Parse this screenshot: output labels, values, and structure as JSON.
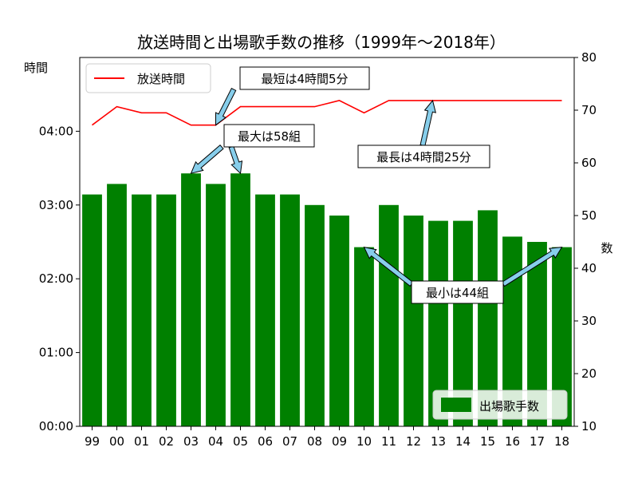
{
  "chart_data": {
    "type": "bar",
    "title": "放送時間と出場歌手数の推移（1999年〜2018年）",
    "categories": [
      "99",
      "00",
      "01",
      "02",
      "03",
      "04",
      "05",
      "06",
      "07",
      "08",
      "09",
      "10",
      "11",
      "12",
      "13",
      "14",
      "15",
      "16",
      "17",
      "18"
    ],
    "series": [
      {
        "name": "出場歌手数",
        "type": "bar",
        "axis": "right",
        "color": "#008000",
        "values": [
          54,
          56,
          54,
          54,
          58,
          56,
          58,
          54,
          54,
          52,
          50,
          44,
          52,
          50,
          49,
          49,
          51,
          46,
          45,
          44
        ]
      },
      {
        "name": "放送時間",
        "type": "line",
        "axis": "left",
        "color": "#ff0000",
        "values": [
          "04:05",
          "04:20",
          "04:15",
          "04:15",
          "04:05",
          "04:05",
          "04:20",
          "04:20",
          "04:20",
          "04:20",
          "04:25",
          "04:15",
          "04:25",
          "04:25",
          "04:25",
          "04:25",
          "04:25",
          "04:25",
          "04:25",
          "04:25"
        ]
      }
    ],
    "y_left": {
      "label": "時間",
      "ticks": [
        "00:00",
        "01:00",
        "02:00",
        "03:00",
        "04:00"
      ],
      "range_minutes": [
        0,
        300
      ]
    },
    "y_right": {
      "label": "数",
      "ticks": [
        10,
        20,
        30,
        40,
        50,
        60,
        70,
        80
      ],
      "range": [
        10,
        80
      ]
    },
    "legend_line": "top-left",
    "legend_bar": "bottom-right",
    "grid": false,
    "annotations": [
      {
        "text": "最短は4時間5分",
        "target_category": "04",
        "target_series": "放送時間"
      },
      {
        "text": "最大は58組",
        "target_categories": [
          "03",
          "05"
        ],
        "target_series": "出場歌手数"
      },
      {
        "text": "最長は4時間25分",
        "target_category": "13",
        "target_series": "放送時間"
      },
      {
        "text": "最小は44組",
        "target_categories": [
          "10",
          "18"
        ],
        "target_series": "出場歌手数"
      }
    ]
  }
}
